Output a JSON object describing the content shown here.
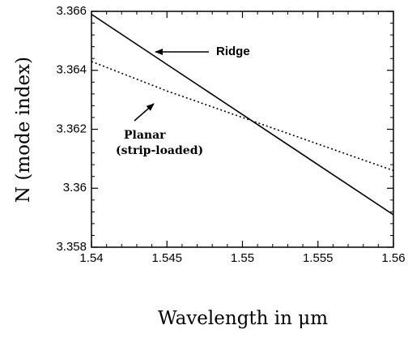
{
  "chart_data": {
    "type": "line",
    "title": "",
    "xlabel": "Wavelength in μm",
    "ylabel": "N (mode index)",
    "xlim": [
      1.54,
      1.56
    ],
    "ylim": [
      3.358,
      3.366
    ],
    "grid": false,
    "legend": "none",
    "x_tick_labels": [
      "1.54",
      "1.545",
      "1.55",
      "1.555",
      "1.56"
    ],
    "y_tick_labels": [
      "3.358",
      "3.36",
      "3.362",
      "3.364",
      "3.366"
    ],
    "series": [
      {
        "name": "Ridge",
        "line_style": "solid",
        "color": "#000000",
        "x": [
          1.54,
          1.545,
          1.55,
          1.555,
          1.56
        ],
        "y": [
          3.3659,
          3.3642,
          3.3625,
          3.3608,
          3.3591
        ]
      },
      {
        "name": "Planar (strip-loaded)",
        "line_style": "dotted",
        "color": "#000000",
        "x": [
          1.54,
          1.545,
          1.55,
          1.555,
          1.56
        ],
        "y": [
          3.3643,
          3.3633,
          3.3624,
          3.3615,
          3.3606
        ]
      }
    ],
    "annotations": [
      {
        "text": "Ridge",
        "arrow_to_series": "Ridge"
      },
      {
        "lines": [
          "Planar",
          "(strip-loaded)"
        ],
        "arrow_to_series": "Planar (strip-loaded)"
      }
    ]
  }
}
